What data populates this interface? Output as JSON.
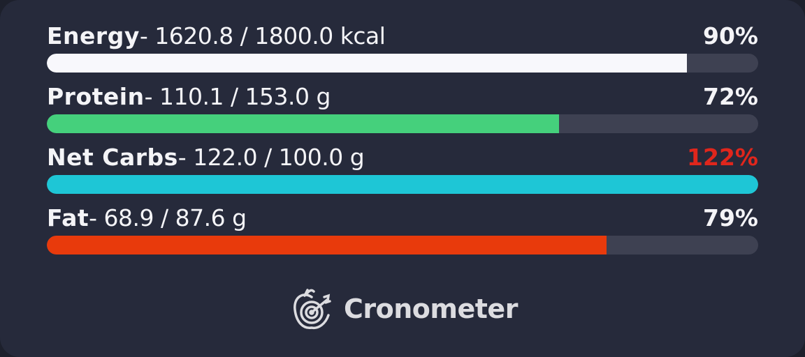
{
  "nutrients": [
    {
      "name": "Energy",
      "value": "- 1620.8 / 1800.0 kcal",
      "percent_label": "90%",
      "fill": 0.9,
      "color": "#f8f8fc",
      "percent_color": "#f4f4f7"
    },
    {
      "name": "Protein",
      "value": "- 110.1 / 153.0 g",
      "percent_label": "72%",
      "fill": 0.72,
      "color": "#45d07c",
      "percent_color": "#f4f4f7"
    },
    {
      "name": "Net Carbs",
      "value": "- 122.0 / 100.0 g",
      "percent_label": "122%",
      "fill": 1.0,
      "color": "#1ec6d6",
      "percent_color": "#e0261c"
    },
    {
      "name": "Fat",
      "value": "- 68.9 / 87.6 g",
      "percent_label": "79%",
      "fill": 0.787,
      "color": "#e83a0c",
      "percent_color": "#f4f4f7"
    }
  ],
  "brand": {
    "name": "Cronometer",
    "icon": "apple-target-icon"
  }
}
